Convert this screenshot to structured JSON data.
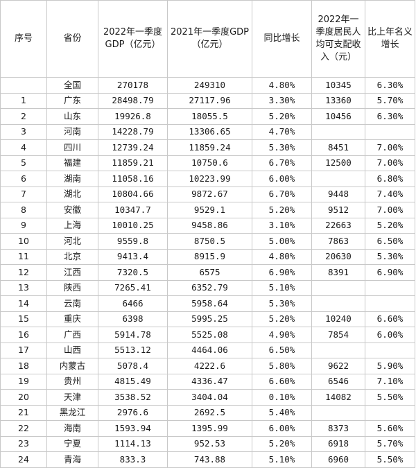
{
  "headers": {
    "seq": "序号",
    "province": "省份",
    "gdp2022": "2022年一季度GDP（亿元）",
    "gdp2021": "2021年一季度GDP（亿元）",
    "growth": "同比增长",
    "income": "2022年一季度居民人均可支配收入（元）",
    "income_growth": "比上年名义增长"
  },
  "rows": [
    {
      "seq": "",
      "province": "全国",
      "gdp2022": "270178",
      "gdp2021": "249310",
      "growth": "4.80%",
      "income": "10345",
      "income_growth": "6.30%"
    },
    {
      "seq": "1",
      "province": "广东",
      "gdp2022": "28498.79",
      "gdp2021": "27117.96",
      "growth": "3.30%",
      "income": "13360",
      "income_growth": "5.70%"
    },
    {
      "seq": "2",
      "province": "山东",
      "gdp2022": "19926.8",
      "gdp2021": "18055.5",
      "growth": "5.20%",
      "income": "10456",
      "income_growth": "6.30%"
    },
    {
      "seq": "3",
      "province": "河南",
      "gdp2022": "14228.79",
      "gdp2021": "13306.65",
      "growth": "4.70%",
      "income": "",
      "income_growth": ""
    },
    {
      "seq": "4",
      "province": "四川",
      "gdp2022": "12739.24",
      "gdp2021": "11859.24",
      "growth": "5.30%",
      "income": "8451",
      "income_growth": "7.00%"
    },
    {
      "seq": "5",
      "province": "福建",
      "gdp2022": "11859.21",
      "gdp2021": "10750.6",
      "growth": "6.70%",
      "income": "12500",
      "income_growth": "7.00%"
    },
    {
      "seq": "6",
      "province": "湖南",
      "gdp2022": "11058.16",
      "gdp2021": "10223.99",
      "growth": "6.00%",
      "income": "",
      "income_growth": "6.80%"
    },
    {
      "seq": "7",
      "province": "湖北",
      "gdp2022": "10804.66",
      "gdp2021": "9872.67",
      "growth": "6.70%",
      "income": "9448",
      "income_growth": "7.40%"
    },
    {
      "seq": "8",
      "province": "安徽",
      "gdp2022": "10347.7",
      "gdp2021": "9529.1",
      "growth": "5.20%",
      "income": "9512",
      "income_growth": "7.00%"
    },
    {
      "seq": "9",
      "province": "上海",
      "gdp2022": "10010.25",
      "gdp2021": "9458.86",
      "growth": "3.10%",
      "income": "22663",
      "income_growth": "5.20%"
    },
    {
      "seq": "10",
      "province": "河北",
      "gdp2022": "9559.8",
      "gdp2021": "8750.5",
      "growth": "5.00%",
      "income": "7863",
      "income_growth": "6.50%"
    },
    {
      "seq": "11",
      "province": "北京",
      "gdp2022": "9413.4",
      "gdp2021": "8915.9",
      "growth": "4.80%",
      "income": "20630",
      "income_growth": "5.30%"
    },
    {
      "seq": "12",
      "province": "江西",
      "gdp2022": "7320.5",
      "gdp2021": "6575",
      "growth": "6.90%",
      "income": "8391",
      "income_growth": "6.90%"
    },
    {
      "seq": "13",
      "province": "陕西",
      "gdp2022": "7265.41",
      "gdp2021": "6352.79",
      "growth": "5.10%",
      "income": "",
      "income_growth": ""
    },
    {
      "seq": "14",
      "province": "云南",
      "gdp2022": "6466",
      "gdp2021": "5958.64",
      "growth": "5.30%",
      "income": "",
      "income_growth": ""
    },
    {
      "seq": "15",
      "province": "重庆",
      "gdp2022": "6398",
      "gdp2021": "5995.25",
      "growth": "5.20%",
      "income": "10240",
      "income_growth": "6.60%"
    },
    {
      "seq": "16",
      "province": "广西",
      "gdp2022": "5914.78",
      "gdp2021": "5525.08",
      "growth": "4.90%",
      "income": "7854",
      "income_growth": "6.00%"
    },
    {
      "seq": "17",
      "province": "山西",
      "gdp2022": "5513.12",
      "gdp2021": "4464.06",
      "growth": "6.50%",
      "income": "",
      "income_growth": ""
    },
    {
      "seq": "18",
      "province": "内蒙古",
      "gdp2022": "5078.4",
      "gdp2021": "4222.6",
      "growth": "5.80%",
      "income": "9622",
      "income_growth": "5.90%"
    },
    {
      "seq": "19",
      "province": "贵州",
      "gdp2022": "4815.49",
      "gdp2021": "4336.47",
      "growth": "6.60%",
      "income": "6546",
      "income_growth": "7.10%"
    },
    {
      "seq": "20",
      "province": "天津",
      "gdp2022": "3538.52",
      "gdp2021": "3404.04",
      "growth": "0.10%",
      "income": "14082",
      "income_growth": "5.50%"
    },
    {
      "seq": "21",
      "province": "黑龙江",
      "gdp2022": "2976.6",
      "gdp2021": "2692.5",
      "growth": "5.40%",
      "income": "",
      "income_growth": ""
    },
    {
      "seq": "22",
      "province": "海南",
      "gdp2022": "1593.94",
      "gdp2021": "1395.99",
      "growth": "6.00%",
      "income": "8373",
      "income_growth": "5.60%"
    },
    {
      "seq": "23",
      "province": "宁夏",
      "gdp2022": "1114.13",
      "gdp2021": "952.53",
      "growth": "5.20%",
      "income": "6918",
      "income_growth": "5.70%"
    },
    {
      "seq": "24",
      "province": "青海",
      "gdp2022": "833.3",
      "gdp2021": "743.88",
      "growth": "5.10%",
      "income": "6960",
      "income_growth": "5.50%"
    }
  ]
}
